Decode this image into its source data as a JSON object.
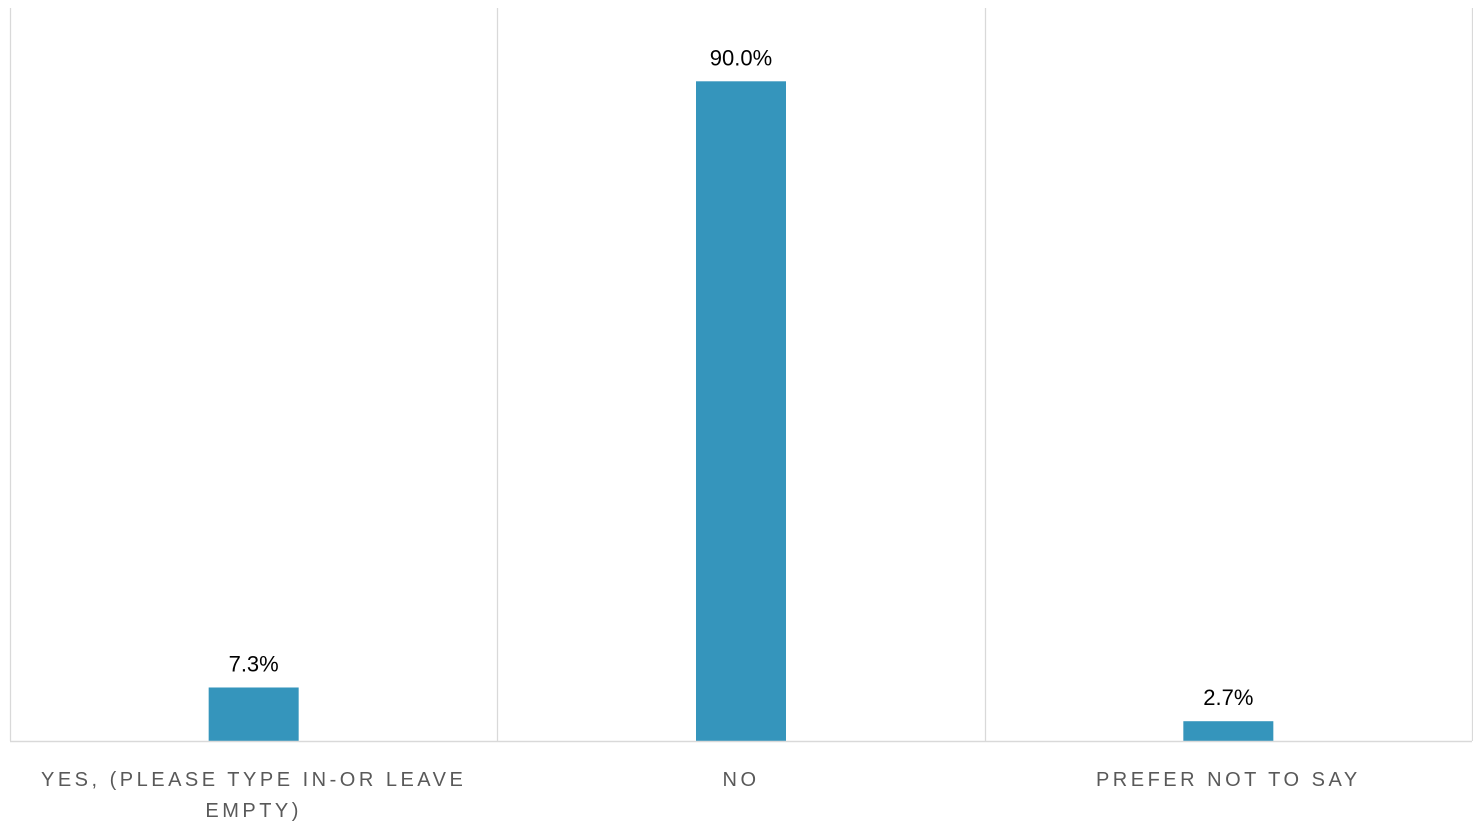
{
  "colors": {
    "bar": "#3595bc",
    "divider": "#d9d9d9",
    "axis": "#d9d9d9",
    "value_text": "#000000",
    "category_text": "#595959"
  },
  "chart_data": {
    "type": "bar",
    "title": "",
    "xlabel": "",
    "ylabel": "",
    "ylim": [
      0,
      100
    ],
    "grid": false,
    "legend": "none",
    "categories": [
      [
        "YES, (PLEASE TYPE IN-OR LEAVE",
        "EMPTY)"
      ],
      [
        "NO"
      ],
      [
        "PREFER NOT TO SAY"
      ]
    ],
    "values": [
      7.3,
      90.0,
      2.7
    ],
    "data_labels": [
      "7.3%",
      "90.0%",
      "2.7%"
    ]
  }
}
